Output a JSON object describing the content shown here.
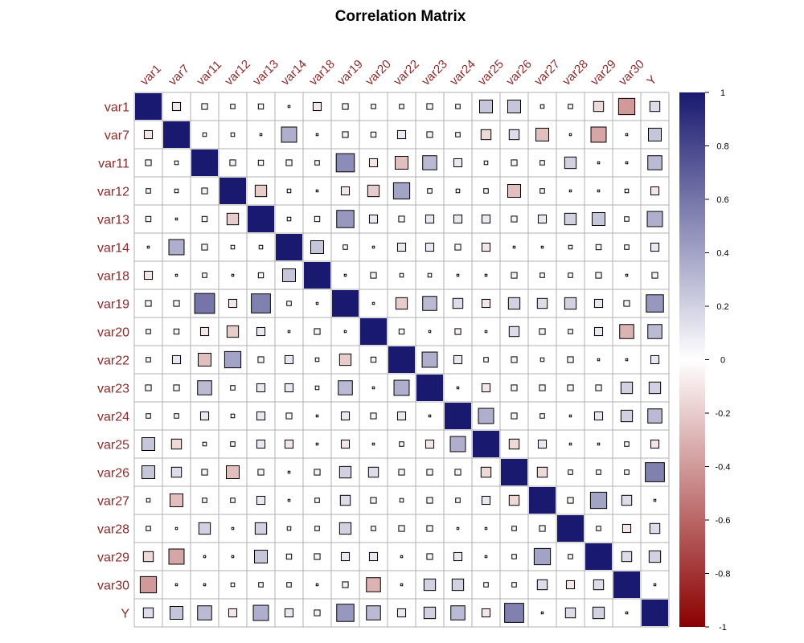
{
  "chart_data": {
    "type": "heatmap",
    "title": "Correlation Matrix",
    "variables": [
      "var1",
      "var7",
      "var11",
      "var12",
      "var13",
      "var14",
      "var18",
      "var19",
      "var20",
      "var22",
      "var23",
      "var24",
      "var25",
      "var26",
      "var27",
      "var28",
      "var29",
      "var30",
      "Y"
    ],
    "matrix": [
      [
        1.0,
        -0.1,
        0.05,
        0.03,
        0.04,
        0.0,
        -0.1,
        0.05,
        0.03,
        0.03,
        -0.05,
        0.03,
        0.25,
        0.25,
        0.02,
        0.03,
        -0.15,
        -0.4,
        0.15
      ],
      [
        -0.1,
        1.0,
        0.02,
        -0.02,
        0.0,
        0.35,
        0.0,
        0.05,
        0.04,
        0.1,
        -0.05,
        0.03,
        -0.15,
        0.15,
        -0.25,
        0.0,
        -0.35,
        0.0,
        0.25
      ],
      [
        0.05,
        0.02,
        1.0,
        0.05,
        0.04,
        -0.05,
        0.03,
        0.5,
        -0.1,
        -0.25,
        0.3,
        0.1,
        0.02,
        0.05,
        0.03,
        0.2,
        0.0,
        0.0,
        0.3
      ],
      [
        0.03,
        -0.02,
        0.05,
        1.0,
        -0.2,
        0.02,
        0.0,
        -0.1,
        -0.2,
        0.4,
        0.03,
        0.02,
        0.03,
        -0.25,
        0.03,
        0.0,
        0.0,
        0.02,
        -0.1
      ],
      [
        0.04,
        0.0,
        0.04,
        -0.2,
        1.0,
        0.02,
        0.04,
        0.45,
        0.1,
        0.05,
        0.1,
        0.1,
        0.1,
        0.05,
        0.1,
        0.2,
        0.25,
        0.03,
        0.35
      ],
      [
        0.0,
        0.35,
        -0.05,
        0.02,
        0.02,
        1.0,
        0.25,
        0.03,
        0.0,
        0.1,
        0.1,
        0.05,
        -0.1,
        0.0,
        0.0,
        -0.02,
        0.04,
        0.03,
        0.1
      ],
      [
        -0.1,
        0.0,
        0.03,
        0.0,
        0.04,
        0.25,
        1.0,
        0.0,
        0.05,
        0.02,
        0.02,
        0.0,
        0.0,
        0.05,
        0.03,
        0.03,
        -0.05,
        0.0,
        0.05
      ],
      [
        -0.05,
        0.05,
        0.6,
        -0.1,
        0.55,
        0.03,
        0.0,
        1.0,
        0.0,
        -0.2,
        0.3,
        0.15,
        -0.1,
        0.2,
        0.15,
        0.2,
        0.1,
        0.05,
        0.45
      ],
      [
        0.03,
        0.04,
        -0.1,
        -0.2,
        0.1,
        0.0,
        -0.05,
        0.0,
        1.0,
        0.04,
        0.0,
        -0.05,
        0.0,
        0.15,
        0.05,
        0.03,
        0.1,
        -0.3,
        0.3
      ],
      [
        0.03,
        0.1,
        -0.25,
        0.4,
        0.05,
        0.1,
        0.02,
        -0.2,
        0.04,
        1.0,
        0.35,
        0.1,
        0.03,
        0.05,
        0.02,
        -0.05,
        0.0,
        0.0,
        0.1
      ],
      [
        -0.05,
        -0.05,
        0.3,
        0.03,
        0.1,
        0.1,
        0.02,
        0.3,
        0.0,
        0.35,
        1.0,
        0.0,
        -0.1,
        0.05,
        0.05,
        0.05,
        0.05,
        0.2,
        0.2
      ],
      [
        0.03,
        0.03,
        0.1,
        0.02,
        0.1,
        0.05,
        0.0,
        0.1,
        -0.05,
        0.1,
        0.0,
        1.0,
        0.35,
        0.05,
        0.03,
        0.0,
        0.1,
        0.2,
        0.3
      ],
      [
        0.25,
        -0.15,
        0.02,
        0.03,
        0.1,
        -0.1,
        0.0,
        -0.1,
        0.0,
        0.03,
        -0.1,
        0.35,
        1.0,
        -0.15,
        0.1,
        0.0,
        0.0,
        0.03,
        -0.1
      ],
      [
        0.25,
        0.15,
        0.05,
        -0.25,
        0.05,
        0.0,
        0.05,
        0.2,
        0.15,
        0.05,
        0.05,
        0.05,
        -0.15,
        1.0,
        -0.15,
        0.03,
        0.03,
        0.03,
        0.55
      ],
      [
        0.02,
        -0.25,
        0.03,
        0.03,
        0.1,
        0.0,
        0.03,
        0.15,
        0.05,
        0.02,
        0.05,
        0.03,
        0.1,
        -0.15,
        1.0,
        0.05,
        0.4,
        0.15,
        0.0
      ],
      [
        0.03,
        0.0,
        0.2,
        0.0,
        0.2,
        -0.02,
        0.03,
        0.2,
        0.03,
        -0.05,
        0.05,
        0.0,
        0.0,
        0.03,
        0.05,
        1.0,
        0.03,
        -0.1,
        0.15
      ],
      [
        -0.15,
        -0.35,
        0.0,
        0.0,
        0.25,
        0.04,
        -0.05,
        0.1,
        0.1,
        0.0,
        0.05,
        0.1,
        0.0,
        0.03,
        0.4,
        0.03,
        1.0,
        0.15,
        0.2
      ],
      [
        -0.4,
        0.0,
        0.0,
        0.02,
        0.03,
        0.03,
        0.0,
        0.05,
        -0.3,
        0.0,
        0.2,
        0.2,
        0.03,
        0.03,
        0.15,
        -0.1,
        0.15,
        1.0,
        0.0
      ],
      [
        0.15,
        0.25,
        0.3,
        -0.1,
        0.35,
        0.1,
        0.05,
        0.45,
        0.3,
        0.1,
        0.2,
        0.3,
        -0.1,
        0.55,
        0.0,
        0.15,
        0.2,
        0.0,
        1.0
      ]
    ],
    "colorbar": {
      "range": [
        -1,
        1
      ],
      "ticks": [
        "1",
        "0.8",
        "0.6",
        "0.4",
        "0.2",
        "0",
        "-0.2",
        "-0.4",
        "-0.6",
        "-0.8",
        "-1"
      ],
      "colors": {
        "negative": "#8B0000",
        "zero": "#FFFFFF",
        "positive": "#191970"
      }
    },
    "grid": true
  }
}
